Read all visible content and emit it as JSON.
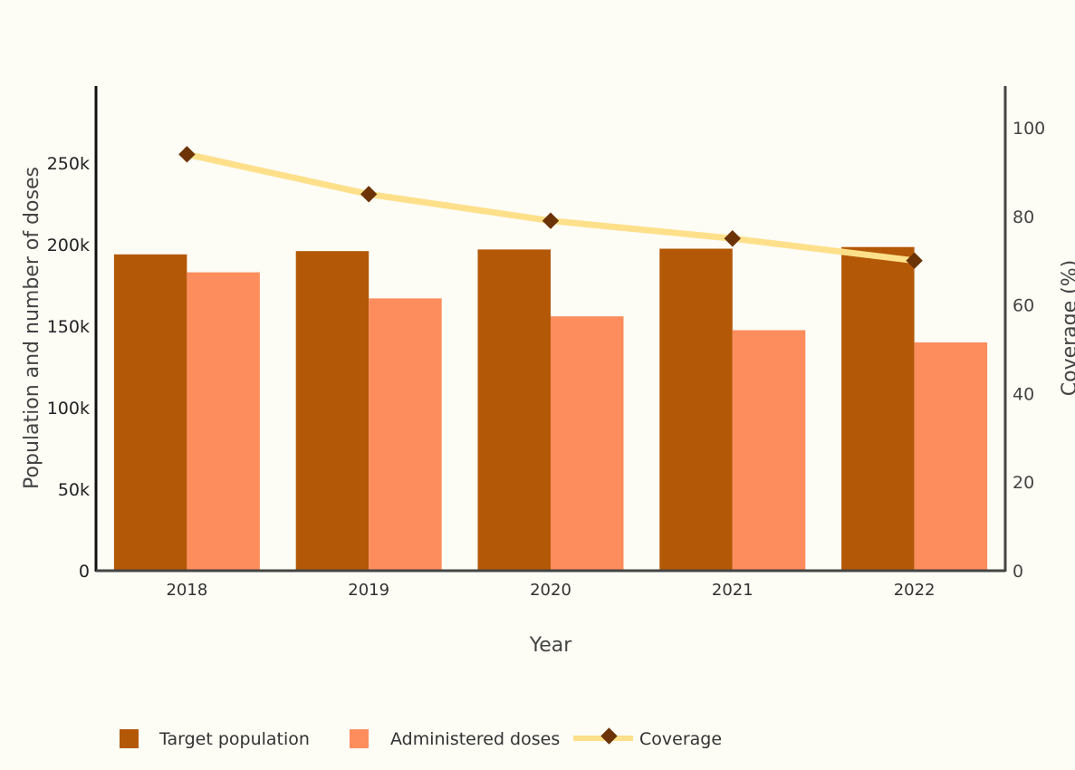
{
  "chart_data": {
    "type": "bar",
    "categories": [
      "2018",
      "2019",
      "2020",
      "2021",
      "2022"
    ],
    "series": [
      {
        "name": "Target population",
        "type": "bar",
        "axis": "left",
        "color": "#b35806",
        "values": [
          194000,
          196000,
          197000,
          197500,
          198500
        ]
      },
      {
        "name": "Administered doses",
        "type": "bar",
        "axis": "left",
        "color": "#fd8d5c",
        "values": [
          183000,
          167000,
          156000,
          147500,
          140000
        ]
      },
      {
        "name": "Coverage",
        "type": "line",
        "axis": "right",
        "color": "#fee08b",
        "marker_color": "#6b3306",
        "values": [
          94,
          85,
          79,
          75,
          70
        ]
      }
    ],
    "xlabel": "Year",
    "ylabel": "Population and number of doses",
    "y2label": "Coverage (%)",
    "ylim": [
      0,
      300000
    ],
    "y2lim": [
      0,
      110
    ],
    "yticks": [
      0,
      50000,
      100000,
      150000,
      200000,
      250000
    ],
    "ytick_labels": [
      "0",
      "50k",
      "100k",
      "150k",
      "200k",
      "250k"
    ],
    "y2ticks": [
      0,
      20,
      40,
      60,
      80,
      100
    ],
    "y2tick_labels": [
      "0",
      "20",
      "40",
      "60",
      "80",
      "100"
    ],
    "grid": false,
    "legend_position": "bottom-left"
  }
}
